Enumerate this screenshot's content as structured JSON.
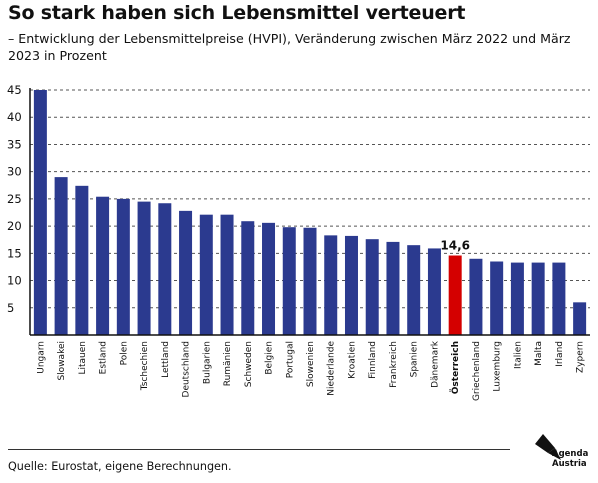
{
  "header": {
    "title": "So stark haben sich Lebensmittel verteuert",
    "subtitle": "– Entwicklung der Lebensmittelpreise (HVPI), Veränderung zwischen März 2022 und März 2023 in Prozent"
  },
  "footer": {
    "source": "Quelle: Eurostat, eigene Berechnungen."
  },
  "logo": {
    "line1": "Agenda",
    "line2": "Austria"
  },
  "colors": {
    "bar": "#2b3a8f",
    "highlight": "#d40000",
    "grid": "#555555",
    "axis": "#111111"
  },
  "chart_data": {
    "type": "bar",
    "title": "",
    "xlabel": "",
    "ylabel": "",
    "ylim": [
      0,
      45
    ],
    "yticks": [
      5,
      10,
      15,
      20,
      25,
      30,
      35,
      40,
      45
    ],
    "grid": "horizontal dashed",
    "categories": [
      "Ungarn",
      "Slowakei",
      "Litauen",
      "Estland",
      "Polen",
      "Tschechien",
      "Lettland",
      "Deutschland",
      "Bulgarien",
      "Rumänien",
      "Schweden",
      "Belgien",
      "Portugal",
      "Slowenien",
      "Niederlande",
      "Kroatien",
      "Finnland",
      "Frankreich",
      "Spanien",
      "Dänemark",
      "Österreich",
      "Griechenland",
      "Luxemburg",
      "Italien",
      "Malta",
      "Irland",
      "Zypern"
    ],
    "values": [
      45.0,
      29.0,
      27.4,
      25.4,
      25.0,
      24.5,
      24.2,
      22.8,
      22.1,
      22.1,
      20.9,
      20.6,
      19.8,
      19.7,
      18.3,
      18.2,
      17.6,
      17.1,
      16.5,
      15.9,
      14.6,
      14.0,
      13.5,
      13.3,
      13.3,
      13.3,
      6.0
    ],
    "highlight_category": "Österreich",
    "annotations": [
      {
        "category": "Österreich",
        "text": "14,6"
      }
    ]
  }
}
